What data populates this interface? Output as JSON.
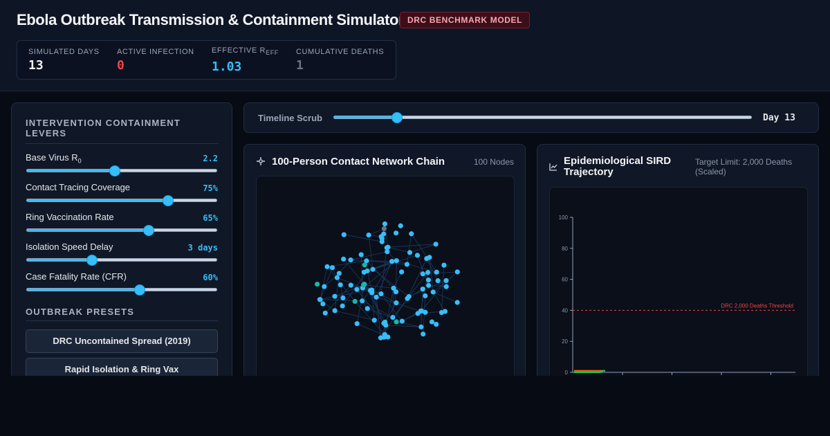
{
  "header": {
    "title": "Ebola Outbreak Transmission & Containment Simulator",
    "badge": "DRC BENCHMARK MODEL",
    "stats": [
      {
        "label": "SIMULATED DAYS",
        "value": "13",
        "color": "#f3f4f6"
      },
      {
        "label": "ACTIVE INFECTION",
        "value": "0",
        "color": "#ef4444"
      },
      {
        "label_main": "EFFECTIVE R",
        "label_sub": "EFF",
        "value": "1.03",
        "color": "#38bdf8"
      },
      {
        "label": "CUMULATIVE DEATHS",
        "value": "1",
        "color": "#6b7280"
      }
    ]
  },
  "levers": {
    "title": "INTERVENTION CONTAINMENT LEVERS",
    "items": [
      {
        "name": "Base Virus R",
        "sub": "0",
        "value": "2.2",
        "fraction": 0.46
      },
      {
        "name": "Contact Tracing Coverage",
        "value": "75%",
        "fraction": 0.74
      },
      {
        "name": "Ring Vaccination Rate",
        "value": "65%",
        "fraction": 0.64
      },
      {
        "name": "Isolation Speed Delay",
        "value": "3 days",
        "fraction": 0.34
      },
      {
        "name": "Case Fatality Rate (CFR)",
        "value": "60%",
        "fraction": 0.59
      }
    ]
  },
  "presets": {
    "title": "OUTBREAK PRESETS",
    "items": [
      "DRC Uncontained Spread (2019)",
      "Rapid Isolation & Ring Vax"
    ]
  },
  "timeline": {
    "label": "Timeline Scrub",
    "day_label": "Day 13",
    "fraction": 0.15
  },
  "network": {
    "title": "100-Person Contact Network Chain",
    "count_label": "100 Nodes",
    "colors": {
      "susceptible": "#38bdf8",
      "recovered": "#14b8a6",
      "dead": "#6b7280",
      "edge": "#1e3a5f"
    }
  },
  "chart": {
    "title": "Epidemiological SIRD Trajectory",
    "target": "Target Limit: 2,000 Deaths (Scaled)",
    "chart_data": {
      "type": "line",
      "yticks": [
        "100",
        "80",
        "60",
        "40",
        "20",
        "0"
      ],
      "ylim": [
        0,
        100
      ],
      "threshold": {
        "label": "DRC 2,000 Deaths Threshold",
        "value": 40,
        "color": "#ef4444"
      },
      "grid": false,
      "series": [
        {
          "color": "#f97316",
          "values": [
            1,
            1,
            1,
            1,
            1,
            1,
            1,
            1,
            1,
            1,
            1,
            1,
            1,
            1
          ]
        },
        {
          "color": "#22c55e",
          "values": [
            0,
            0,
            0,
            0,
            0,
            0,
            0,
            0,
            0,
            0,
            0,
            0,
            1,
            1
          ]
        }
      ]
    }
  }
}
